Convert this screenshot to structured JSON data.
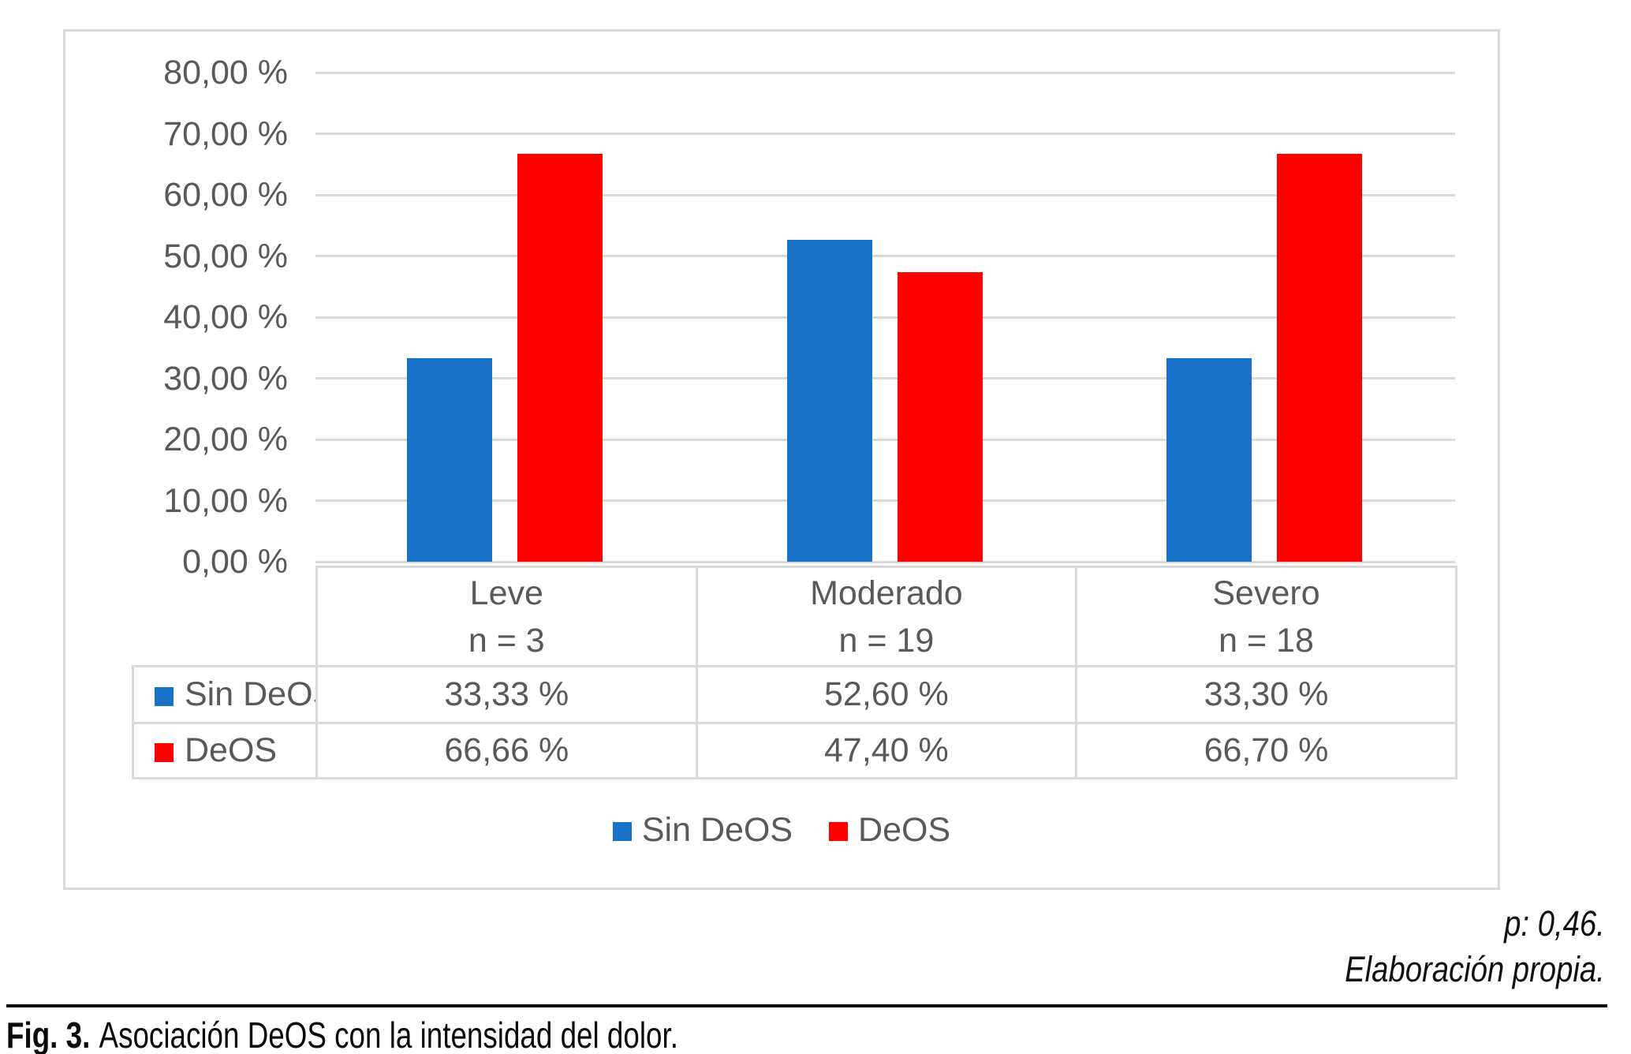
{
  "colors": {
    "series_blue": "#1772C8",
    "series_red": "#FF0000",
    "grid": "#D9D9D9",
    "chart_text": "#595959"
  },
  "chart_data": {
    "type": "bar",
    "title": "",
    "categories": [
      "Leve",
      "Moderado",
      "Severo"
    ],
    "category_counts": [
      "n = 3",
      "n = 19",
      "n = 18"
    ],
    "series": [
      {
        "name": "Sin DeOS",
        "color": "#1772C8",
        "values": [
          33.33,
          52.6,
          33.3
        ],
        "value_labels": [
          "33,33 %",
          "52,60 %",
          "33,30 %"
        ]
      },
      {
        "name": "DeOS",
        "color": "#FF0000",
        "values": [
          66.66,
          47.4,
          66.7
        ],
        "value_labels": [
          "66,66 %",
          "47,40 %",
          "66,70 %"
        ]
      }
    ],
    "y_axis": {
      "min": 0,
      "max": 80,
      "step": 10,
      "tick_labels": [
        "80,00 %",
        "70,00 %",
        "60,00 %",
        "50,00 %",
        "40,00 %",
        "30,00 %",
        "20,00 %",
        "10,00 %",
        "0,00 %"
      ]
    },
    "legend": {
      "position": "bottom",
      "items": [
        "Sin DeOS",
        "DeOS"
      ]
    },
    "grid": true
  },
  "notes": {
    "p_value": "p: 0,46.",
    "source": "Elaboración propia."
  },
  "caption": {
    "label": "Fig. 3.",
    "text": "Asociación DeOS con la intensidad del dolor."
  }
}
